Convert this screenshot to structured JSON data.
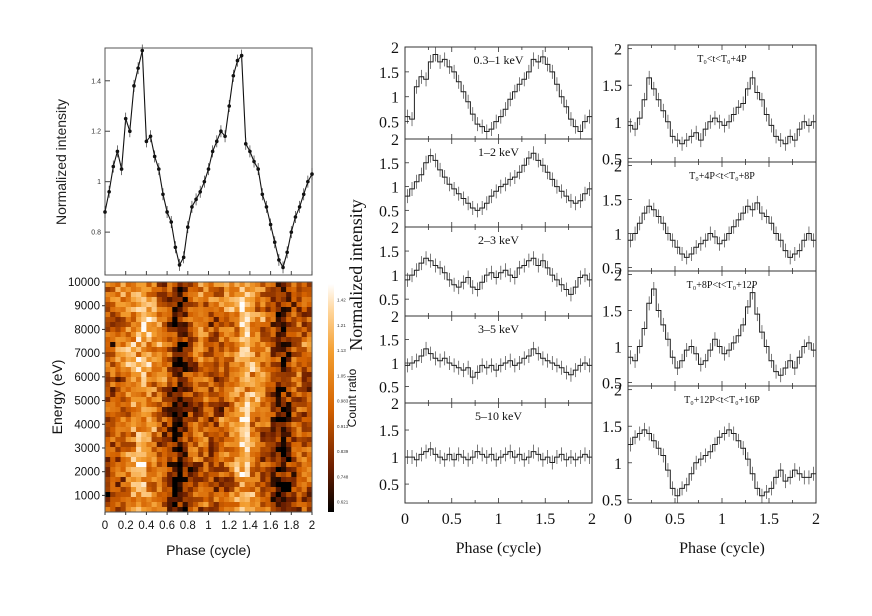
{
  "chart_data": [
    {
      "id": "profile",
      "type": "line",
      "ylabel": "Normalized intensity",
      "yticks": [
        "1.4",
        "1.2",
        "1",
        "0.8"
      ],
      "xlim": [
        0,
        2
      ],
      "ylim": [
        0.63,
        1.53
      ],
      "series": [
        {
          "name": "profile",
          "x": [
            0.0,
            0.04,
            0.08,
            0.12,
            0.16,
            0.2,
            0.24,
            0.28,
            0.32,
            0.36,
            0.4,
            0.44,
            0.48,
            0.52,
            0.56,
            0.6,
            0.64,
            0.68,
            0.72,
            0.76,
            0.8,
            0.84,
            0.88,
            0.92,
            0.96,
            1.0,
            1.04,
            1.08,
            1.12,
            1.16,
            1.2,
            1.24,
            1.28,
            1.32,
            1.36,
            1.4,
            1.44,
            1.48,
            1.52,
            1.56,
            1.6,
            1.64,
            1.68,
            1.72,
            1.76,
            1.8,
            1.84,
            1.88,
            1.92,
            1.96,
            2.0
          ],
          "y": [
            0.88,
            0.96,
            1.06,
            1.12,
            1.05,
            1.25,
            1.2,
            1.38,
            1.45,
            1.52,
            1.16,
            1.18,
            1.1,
            1.05,
            0.95,
            0.88,
            0.84,
            0.74,
            0.67,
            0.7,
            0.82,
            0.9,
            0.93,
            0.96,
            1.0,
            1.05,
            1.12,
            1.16,
            1.2,
            1.18,
            1.3,
            1.42,
            1.48,
            1.5,
            1.15,
            1.12,
            1.08,
            1.05,
            0.95,
            0.9,
            0.83,
            0.76,
            0.69,
            0.66,
            0.72,
            0.8,
            0.86,
            0.9,
            0.95,
            1.0,
            1.03
          ]
        }
      ]
    },
    {
      "id": "heatmap",
      "type": "heatmap",
      "xlabel": "Phase (cycle)",
      "ylabel": "Energy (eV)",
      "xticks": [
        "0",
        "0.2",
        "0.4",
        "0.6",
        "0.8",
        "1",
        "1.2",
        "1.4",
        "1.6",
        "1.8",
        "2"
      ],
      "yticks": [
        "10000",
        "9000",
        "8000",
        "7000",
        "6000",
        "5000",
        "4000",
        "3000",
        "2000",
        "1000"
      ],
      "xlim": [
        0,
        2
      ],
      "ylim": [
        300,
        10000
      ],
      "colorbar_label": "Count ratio",
      "colorbar_ticks": [
        "1.42",
        "1.21",
        "1.13",
        "1.05",
        "0.983",
        "0.913",
        "0.839",
        "0.748",
        "0.621"
      ]
    },
    {
      "id": "energy_bands",
      "type": "line",
      "ylabel": "Normalized intensity",
      "xlabel": "Phase (cycle)",
      "xticks": [
        "0",
        "0.5",
        "1",
        "1.5",
        "2"
      ],
      "xlim": [
        0,
        2
      ],
      "panels": [
        {
          "label": "0.3–1 keV",
          "ylim": [
            0.15,
            2.0
          ],
          "yticks": [
            "2",
            "1.5",
            "1",
            "0.5"
          ],
          "values": [
            0.6,
            0.55,
            1.2,
            1.4,
            1.35,
            1.7,
            1.85,
            1.7,
            1.75,
            1.6,
            1.5,
            1.3,
            1.1,
            0.9,
            0.65,
            0.45,
            0.4,
            0.3,
            0.35,
            0.5,
            0.6,
            0.75,
            0.95,
            1.1,
            1.25,
            1.35,
            1.5,
            1.75,
            1.7,
            1.8,
            1.65,
            1.5,
            1.25,
            1.0,
            0.8,
            0.55,
            0.4,
            0.3,
            0.5,
            0.6
          ]
        },
        {
          "label": "1–2 keV",
          "ylim": [
            0.15,
            2.0
          ],
          "yticks": [
            "2",
            "1.5",
            "1",
            "0.5"
          ],
          "values": [
            0.8,
            0.95,
            1.1,
            1.25,
            1.5,
            1.65,
            1.55,
            1.35,
            1.2,
            1.05,
            0.95,
            0.85,
            0.75,
            0.65,
            0.55,
            0.5,
            0.55,
            0.65,
            0.8,
            0.9,
            1.0,
            1.05,
            1.15,
            1.2,
            1.3,
            1.45,
            1.6,
            1.7,
            1.55,
            1.45,
            1.3,
            1.15,
            1.0,
            0.9,
            0.8,
            0.7,
            0.65,
            0.7,
            0.85,
            0.95
          ]
        },
        {
          "label": "2–3 keV",
          "ylim": [
            0.15,
            2.0
          ],
          "yticks": [
            "2",
            "1.5",
            "1",
            "0.5"
          ],
          "values": [
            0.9,
            1.0,
            1.1,
            1.25,
            1.35,
            1.3,
            1.2,
            1.15,
            1.05,
            0.9,
            0.8,
            0.75,
            0.85,
            0.95,
            0.75,
            0.7,
            0.85,
            1.0,
            1.05,
            0.95,
            1.05,
            1.1,
            1.0,
            0.95,
            1.15,
            1.2,
            1.3,
            1.35,
            1.2,
            1.3,
            1.15,
            1.0,
            0.9,
            0.8,
            0.7,
            0.6,
            0.75,
            0.95,
            1.0,
            0.9
          ]
        },
        {
          "label": "3–5 keV",
          "ylim": [
            0.15,
            2.0
          ],
          "yticks": [
            "2",
            "1.5",
            "1",
            "0.5"
          ],
          "values": [
            0.95,
            1.0,
            1.05,
            1.15,
            1.3,
            1.2,
            1.1,
            1.05,
            1.1,
            1.0,
            0.95,
            0.9,
            0.85,
            0.9,
            0.7,
            0.8,
            0.95,
            0.9,
            0.95,
            0.85,
            0.95,
            1.0,
            1.05,
            0.95,
            1.0,
            1.1,
            1.15,
            1.3,
            1.2,
            1.1,
            1.05,
            1.0,
            0.95,
            0.9,
            0.8,
            0.75,
            0.85,
            0.95,
            1.0,
            0.95
          ]
        },
        {
          "label": "5–10 keV",
          "ylim": [
            0.15,
            2.0
          ],
          "yticks": [
            "2",
            "1.5",
            "1",
            "0.5"
          ],
          "values": [
            1.0,
            1.0,
            0.95,
            1.05,
            1.1,
            1.15,
            1.05,
            1.0,
            0.95,
            1.05,
            0.95,
            1.05,
            1.0,
            0.95,
            1.0,
            1.1,
            1.05,
            1.0,
            1.05,
            0.95,
            1.0,
            1.05,
            1.1,
            1.0,
            1.05,
            0.95,
            1.0,
            1.1,
            1.05,
            0.95,
            1.0,
            0.9,
            1.0,
            1.05,
            0.95,
            1.0,
            0.95,
            1.0,
            1.05,
            1.0
          ]
        }
      ]
    },
    {
      "id": "time_slices",
      "type": "line",
      "xlabel": "Phase (cycle)",
      "xticks": [
        "0",
        "0.5",
        "1",
        "1.5",
        "2"
      ],
      "xlim": [
        0,
        2
      ],
      "panels": [
        {
          "label": "T₀<t<T₀+4P",
          "ylim": [
            0.45,
            2.05
          ],
          "yticks": [
            "2",
            "1.5",
            "1",
            "0.5"
          ],
          "values": [
            0.95,
            0.9,
            1.05,
            1.3,
            1.6,
            1.45,
            1.3,
            1.15,
            1.0,
            0.8,
            0.75,
            0.7,
            0.75,
            0.8,
            0.85,
            0.75,
            0.9,
            1.0,
            1.05,
            1.0,
            0.95,
            1.0,
            1.1,
            1.2,
            1.25,
            1.45,
            1.6,
            1.4,
            1.3,
            1.1,
            0.95,
            0.8,
            0.75,
            0.7,
            0.8,
            0.75,
            0.9,
            1.0,
            0.95,
            1.0
          ]
        },
        {
          "label": "T₀+4P<t<T₀+8P",
          "ylim": [
            0.45,
            2.05
          ],
          "yticks": [
            "2",
            "1.5",
            "1",
            "0.5"
          ],
          "values": [
            0.9,
            1.0,
            1.15,
            1.3,
            1.4,
            1.35,
            1.25,
            1.15,
            1.0,
            0.9,
            0.8,
            0.7,
            0.65,
            0.7,
            0.8,
            0.85,
            0.9,
            1.0,
            0.95,
            0.85,
            0.9,
            1.0,
            1.1,
            1.2,
            1.3,
            1.4,
            1.35,
            1.45,
            1.3,
            1.25,
            1.15,
            1.0,
            0.9,
            0.75,
            0.65,
            0.7,
            0.75,
            0.9,
            1.0,
            0.9
          ]
        },
        {
          "label": "T₀+8P<t<T₀+12P",
          "ylim": [
            0.45,
            2.05
          ],
          "yticks": [
            "2",
            "1.5",
            "1",
            "0.5"
          ],
          "values": [
            0.85,
            0.8,
            1.0,
            1.25,
            1.6,
            1.8,
            1.5,
            1.3,
            1.1,
            0.85,
            0.7,
            0.8,
            0.95,
            1.0,
            0.9,
            0.75,
            0.8,
            0.95,
            1.1,
            1.0,
            0.9,
            0.95,
            1.05,
            1.15,
            1.3,
            1.55,
            1.75,
            1.45,
            1.2,
            1.0,
            0.8,
            0.65,
            0.6,
            0.7,
            0.8,
            0.7,
            0.85,
            1.0,
            1.05,
            0.95
          ]
        },
        {
          "label": "T₀+12P<t<T₀+16P",
          "ylim": [
            0.45,
            2.05
          ],
          "yticks": [
            "2",
            "1.5",
            "1",
            "0.5"
          ],
          "values": [
            1.25,
            1.35,
            1.4,
            1.45,
            1.4,
            1.3,
            1.2,
            1.1,
            0.9,
            0.65,
            0.55,
            0.65,
            0.7,
            0.85,
            1.0,
            1.05,
            1.1,
            1.15,
            1.25,
            1.35,
            1.4,
            1.45,
            1.4,
            1.3,
            1.2,
            1.05,
            0.85,
            0.65,
            0.55,
            0.6,
            0.65,
            0.8,
            0.9,
            0.75,
            0.8,
            0.9,
            0.85,
            0.8,
            0.8,
            0.85
          ]
        }
      ]
    }
  ]
}
